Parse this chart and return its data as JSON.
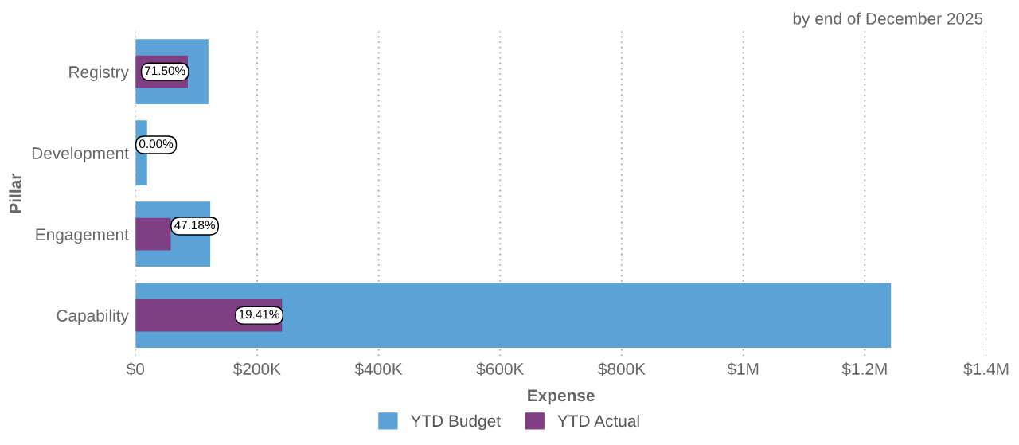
{
  "chart_data": {
    "type": "bar",
    "orientation": "horizontal",
    "title": "by end of December 2025",
    "xlabel": "Expense",
    "ylabel": "Pillar",
    "categories": [
      "Registry",
      "Development",
      "Engagement",
      "Capability"
    ],
    "series": [
      {
        "name": "YTD Budget",
        "color": "#5ba3d6",
        "values": [
          120000,
          19000,
          123000,
          1243000
        ]
      },
      {
        "name": "YTD Actual",
        "color": "#7f3f82",
        "values": [
          86000,
          0,
          58000,
          241000
        ]
      }
    ],
    "annotations": [
      {
        "text": "71.50%",
        "x": 86000,
        "y": "Registry"
      },
      {
        "text": "0.00%",
        "x": 0,
        "y": "Development"
      },
      {
        "text": "47.18%",
        "x": 58000,
        "y": "Engagement"
      },
      {
        "text": "19.41%",
        "x": 241000,
        "y": "Capability"
      }
    ],
    "xlim": [
      0,
      1400000
    ],
    "xticks": [
      {
        "value": 0,
        "label": "$0"
      },
      {
        "value": 200000,
        "label": "$200K"
      },
      {
        "value": 400000,
        "label": "$400K"
      },
      {
        "value": 600000,
        "label": "$600K"
      },
      {
        "value": 800000,
        "label": "$800K"
      },
      {
        "value": 1000000,
        "label": "$1M"
      },
      {
        "value": 1200000,
        "label": "$1.2M"
      },
      {
        "value": 1400000,
        "label": "$1.4M"
      }
    ],
    "grid": "x",
    "legend": "bottom"
  }
}
